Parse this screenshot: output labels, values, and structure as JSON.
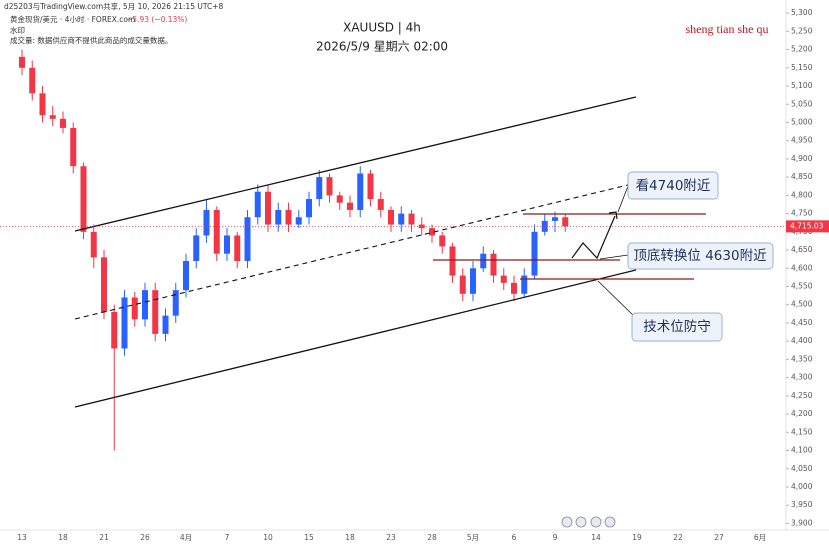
{
  "header": {
    "source": "d25203与TradingView.com共享, 5月 10, 2026 21:15 UTC+8",
    "symbol": "黄金现货/美元 · 4小时 · FOREX.com",
    "change": "−5.93 (−0.13%)",
    "watermark": "水印",
    "volume_note": "成交量: 数据供应商不提供此商品的成交量数据。"
  },
  "chart_data": {
    "type": "candlestick",
    "title": "XAUUSD | 4h",
    "subtitle": "2026/5/9 星期六 02:00",
    "brand": "sheng tian she qu",
    "annotations": [
      "看4740附近",
      "顶底转换位 4630附近",
      "技术位防守"
    ],
    "up_color": "#2962ff",
    "down_color": "#f23645",
    "last_price": {
      "value": 4715.03,
      "label": "4,715.03"
    },
    "categories": [
      "13",
      null,
      null,
      null,
      "18",
      null,
      null,
      null,
      "21",
      null,
      null,
      null,
      "26",
      null,
      null,
      null,
      "4月",
      null,
      null,
      null,
      "7",
      null,
      null,
      null,
      "10",
      null,
      null,
      null,
      "15",
      null,
      null,
      null,
      "18",
      null,
      null,
      null,
      "23",
      null,
      null,
      null,
      "28",
      null,
      null,
      null,
      "5月",
      null,
      null,
      null,
      "6",
      null,
      null,
      null,
      "9",
      null,
      null,
      null,
      "14",
      null,
      null,
      null,
      "19",
      null,
      null,
      null,
      "22",
      null,
      null,
      null,
      "27",
      null,
      null,
      null,
      "6月",
      null
    ],
    "open": [
      5180,
      5150,
      5080,
      5020,
      5010,
      4985,
      4880,
      4700,
      4630,
      4480,
      4380,
      4520,
      4460,
      4540,
      4420,
      4470,
      4540,
      4620,
      4690,
      4760,
      4640,
      4690,
      4620,
      4740,
      4810,
      4720,
      4760,
      4720,
      4740,
      4790,
      4850,
      4800,
      4780,
      4760,
      4860,
      4790,
      4760,
      4720,
      4750,
      4720,
      4710,
      4690,
      4660,
      4580,
      4530,
      4600,
      4640,
      4580,
      4560,
      4530,
      4580,
      4700,
      4730,
      4740,
      null,
      null,
      null,
      null,
      null,
      null,
      null,
      null,
      null,
      null,
      null,
      null,
      null,
      null,
      null,
      null,
      null,
      null,
      null,
      null
    ],
    "high": [
      5200,
      5170,
      5100,
      5045,
      5030,
      5000,
      4890,
      4720,
      4650,
      4500,
      4540,
      4535,
      4560,
      4560,
      4490,
      4560,
      4640,
      4710,
      4790,
      4770,
      4710,
      4700,
      4760,
      4830,
      4830,
      4780,
      4780,
      4760,
      4810,
      4870,
      4860,
      4810,
      4800,
      4880,
      4870,
      4810,
      4770,
      4770,
      4760,
      4740,
      4720,
      4700,
      4670,
      4600,
      4620,
      4660,
      4650,
      4600,
      4580,
      4600,
      4720,
      4750,
      4755,
      4750,
      null,
      null,
      null,
      null,
      null,
      null,
      null,
      null,
      null,
      null,
      null,
      null,
      null,
      null,
      null,
      null,
      null,
      null,
      null,
      null
    ],
    "low": [
      5130,
      5060,
      5000,
      4990,
      4970,
      4860,
      4680,
      4600,
      4460,
      4100,
      4360,
      4440,
      4440,
      4400,
      4400,
      4450,
      4520,
      4600,
      4670,
      4620,
      4620,
      4600,
      4600,
      4720,
      4700,
      4700,
      4700,
      4710,
      4720,
      4770,
      4780,
      4760,
      4740,
      4740,
      4770,
      4740,
      4700,
      4700,
      4700,
      4690,
      4670,
      4640,
      4560,
      4510,
      4510,
      4590,
      4560,
      4540,
      4510,
      4520,
      4570,
      4690,
      4700,
      4700,
      null,
      null,
      null,
      null,
      null,
      null,
      null,
      null,
      null,
      null,
      null,
      null,
      null,
      null,
      null,
      null,
      null,
      null,
      null,
      null
    ],
    "close": [
      5150,
      5080,
      5020,
      5010,
      4985,
      4880,
      4700,
      4630,
      4480,
      4380,
      4520,
      4460,
      4540,
      4420,
      4470,
      4540,
      4620,
      4690,
      4760,
      4640,
      4690,
      4620,
      4740,
      4810,
      4720,
      4760,
      4720,
      4740,
      4790,
      4850,
      4800,
      4780,
      4760,
      4860,
      4790,
      4760,
      4720,
      4750,
      4720,
      4710,
      4690,
      4660,
      4580,
      4530,
      4600,
      4640,
      4580,
      4560,
      4530,
      4580,
      4700,
      4730,
      4740,
      4715.03,
      null,
      null,
      null,
      null,
      null,
      null,
      null,
      null,
      null,
      null,
      null,
      null,
      null,
      null,
      null,
      null,
      null,
      null,
      null,
      null
    ],
    "ylim": [
      3882,
      5336
    ],
    "yticks": [
      {
        "value": 3900,
        "label": "3,900"
      },
      {
        "value": 3950,
        "label": "3,950"
      },
      {
        "value": 4000,
        "label": "4,000"
      },
      {
        "value": 4050,
        "label": "4,050"
      },
      {
        "value": 4100,
        "label": "4,100"
      },
      {
        "value": 4150,
        "label": "4,150"
      },
      {
        "value": 4200,
        "label": "4,200"
      },
      {
        "value": 4250,
        "label": "4,250"
      },
      {
        "value": 4300,
        "label": "4,300"
      },
      {
        "value": 4350,
        "label": "4,350"
      },
      {
        "value": 4400,
        "label": "4,400"
      },
      {
        "value": 4450,
        "label": "4,450"
      },
      {
        "value": 4500,
        "label": "4,500"
      },
      {
        "value": 4550,
        "label": "4,550"
      },
      {
        "value": 4600,
        "label": "4,600"
      },
      {
        "value": 4650,
        "label": "4,650"
      },
      {
        "value": 4700,
        "label": "4,700"
      },
      {
        "value": 4750,
        "label": "4,750"
      },
      {
        "value": 4800,
        "label": "4,800"
      },
      {
        "value": 4850,
        "label": "4,850"
      },
      {
        "value": 4900,
        "label": "4,900"
      },
      {
        "value": 4950,
        "label": "4,950"
      },
      {
        "value": 5000,
        "label": "5,000"
      },
      {
        "value": 5050,
        "label": "5,050"
      },
      {
        "value": 5100,
        "label": "5,100"
      },
      {
        "value": 5150,
        "label": "5,150"
      },
      {
        "value": 5200,
        "label": "5,200"
      },
      {
        "value": 5250,
        "label": "5,250"
      },
      {
        "value": 5300,
        "label": "5,300"
      }
    ],
    "grid": false
  }
}
